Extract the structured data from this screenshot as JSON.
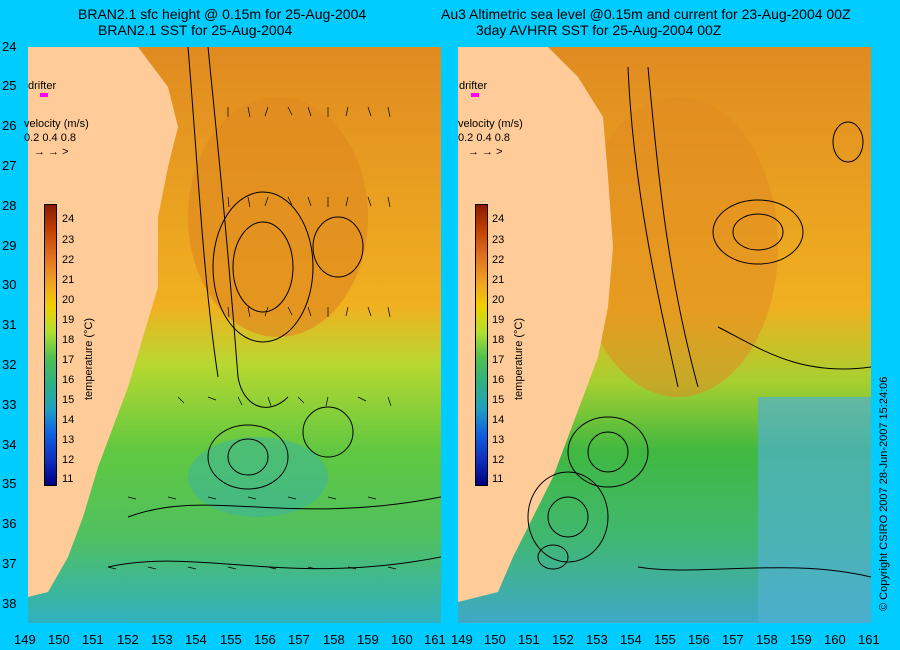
{
  "titles": {
    "left_line1": "BRAN2.1 sfc height @ 0.15m for 25-Aug-2004",
    "left_line2": "BRAN2.1 SST for 25-Aug-2004",
    "right_line1": "Au3 Altimetric sea level  @0.15m and current for 23-Aug-2004 00Z",
    "right_line2": "3day AVHRR SST for 25-Aug-2004 00Z"
  },
  "y_axis": {
    "labels": [
      "24",
      "25",
      "26",
      "27",
      "28",
      "29",
      "30",
      "31",
      "32",
      "33",
      "34",
      "35",
      "36",
      "37",
      "38"
    ]
  },
  "x_axis": {
    "labels": [
      "149",
      "150",
      "151",
      "152",
      "153",
      "154",
      "155",
      "156",
      "157",
      "158",
      "159",
      "160",
      "161"
    ]
  },
  "legend": {
    "drifter_label": "drifter",
    "velocity_title": "velocity (m/s)",
    "velocity_values": "0.2 0.4 0.8",
    "velocity_arrows": "→ → >",
    "colorbar_title": "temperature (°C)",
    "colorbar_ticks": [
      "24",
      "23",
      "22",
      "21",
      "20",
      "19",
      "18",
      "17",
      "16",
      "15",
      "14",
      "13",
      "12",
      "11"
    ]
  },
  "copyright": "© Copyright CSIRO 2007   28-Jun-2007 15:24:06",
  "colors": {
    "background": "#00ccff",
    "land": "#ffcc99",
    "warm": "#e08a20",
    "mid": "#f0b020",
    "cool": "#60c840",
    "cold": "#30b0c0",
    "drifter": "#ff00ff"
  }
}
